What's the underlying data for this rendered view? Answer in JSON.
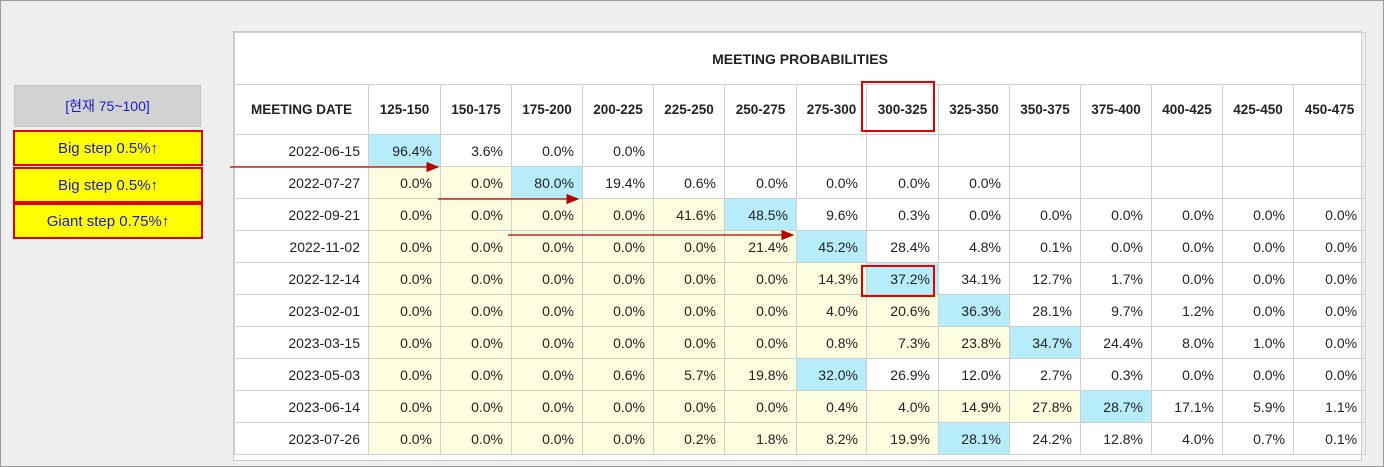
{
  "side_panel": {
    "current_label": "[현재 75~100]",
    "steps": [
      "Big step 0.5%↑",
      "Big step 0.5%↑",
      "Giant step 0.75%↑"
    ]
  },
  "table": {
    "title": "MEETING PROBABILITIES",
    "date_header": "MEETING DATE",
    "columns": [
      "125-150",
      "150-175",
      "175-200",
      "200-225",
      "225-250",
      "250-275",
      "275-300",
      "300-325",
      "325-350",
      "350-375",
      "375-400",
      "400-425",
      "425-450",
      "450-475"
    ],
    "rows": [
      {
        "date": "2022-06-15",
        "cells": [
          {
            "v": "96.4%",
            "s": "hl"
          },
          {
            "v": "3.6%",
            "s": ""
          },
          {
            "v": "0.0%",
            "s": ""
          },
          {
            "v": "0.0%",
            "s": ""
          },
          {
            "v": "",
            "s": ""
          },
          {
            "v": "",
            "s": ""
          },
          {
            "v": "",
            "s": ""
          },
          {
            "v": "",
            "s": ""
          },
          {
            "v": "",
            "s": ""
          },
          {
            "v": "",
            "s": ""
          },
          {
            "v": "",
            "s": ""
          },
          {
            "v": "",
            "s": ""
          },
          {
            "v": "",
            "s": ""
          },
          {
            "v": "",
            "s": ""
          }
        ]
      },
      {
        "date": "2022-07-27",
        "cells": [
          {
            "v": "0.0%",
            "s": "yel"
          },
          {
            "v": "0.0%",
            "s": "yel"
          },
          {
            "v": "80.0%",
            "s": "hl"
          },
          {
            "v": "19.4%",
            "s": ""
          },
          {
            "v": "0.6%",
            "s": ""
          },
          {
            "v": "0.0%",
            "s": ""
          },
          {
            "v": "0.0%",
            "s": ""
          },
          {
            "v": "0.0%",
            "s": ""
          },
          {
            "v": "0.0%",
            "s": ""
          },
          {
            "v": "",
            "s": ""
          },
          {
            "v": "",
            "s": ""
          },
          {
            "v": "",
            "s": ""
          },
          {
            "v": "",
            "s": ""
          },
          {
            "v": "",
            "s": ""
          }
        ]
      },
      {
        "date": "2022-09-21",
        "cells": [
          {
            "v": "0.0%",
            "s": "yel"
          },
          {
            "v": "0.0%",
            "s": "yel"
          },
          {
            "v": "0.0%",
            "s": "yel"
          },
          {
            "v": "0.0%",
            "s": "yel"
          },
          {
            "v": "41.6%",
            "s": "yel"
          },
          {
            "v": "48.5%",
            "s": "hl"
          },
          {
            "v": "9.6%",
            "s": ""
          },
          {
            "v": "0.3%",
            "s": ""
          },
          {
            "v": "0.0%",
            "s": ""
          },
          {
            "v": "0.0%",
            "s": ""
          },
          {
            "v": "0.0%",
            "s": ""
          },
          {
            "v": "0.0%",
            "s": ""
          },
          {
            "v": "0.0%",
            "s": ""
          },
          {
            "v": "0.0%",
            "s": ""
          }
        ]
      },
      {
        "date": "2022-11-02",
        "cells": [
          {
            "v": "0.0%",
            "s": "yel"
          },
          {
            "v": "0.0%",
            "s": "yel"
          },
          {
            "v": "0.0%",
            "s": "yel"
          },
          {
            "v": "0.0%",
            "s": "yel"
          },
          {
            "v": "0.0%",
            "s": "yel"
          },
          {
            "v": "21.4%",
            "s": "yel"
          },
          {
            "v": "45.2%",
            "s": "hl"
          },
          {
            "v": "28.4%",
            "s": ""
          },
          {
            "v": "4.8%",
            "s": ""
          },
          {
            "v": "0.1%",
            "s": ""
          },
          {
            "v": "0.0%",
            "s": ""
          },
          {
            "v": "0.0%",
            "s": ""
          },
          {
            "v": "0.0%",
            "s": ""
          },
          {
            "v": "0.0%",
            "s": ""
          }
        ]
      },
      {
        "date": "2022-12-14",
        "cells": [
          {
            "v": "0.0%",
            "s": "yel"
          },
          {
            "v": "0.0%",
            "s": "yel"
          },
          {
            "v": "0.0%",
            "s": "yel"
          },
          {
            "v": "0.0%",
            "s": "yel"
          },
          {
            "v": "0.0%",
            "s": "yel"
          },
          {
            "v": "0.0%",
            "s": "yel"
          },
          {
            "v": "14.3%",
            "s": "yel"
          },
          {
            "v": "37.2%",
            "s": "hl"
          },
          {
            "v": "34.1%",
            "s": ""
          },
          {
            "v": "12.7%",
            "s": ""
          },
          {
            "v": "1.7%",
            "s": ""
          },
          {
            "v": "0.0%",
            "s": ""
          },
          {
            "v": "0.0%",
            "s": ""
          },
          {
            "v": "0.0%",
            "s": ""
          }
        ]
      },
      {
        "date": "2023-02-01",
        "cells": [
          {
            "v": "0.0%",
            "s": "yel"
          },
          {
            "v": "0.0%",
            "s": "yel"
          },
          {
            "v": "0.0%",
            "s": "yel"
          },
          {
            "v": "0.0%",
            "s": "yel"
          },
          {
            "v": "0.0%",
            "s": "yel"
          },
          {
            "v": "0.0%",
            "s": "yel"
          },
          {
            "v": "4.0%",
            "s": "yel"
          },
          {
            "v": "20.6%",
            "s": "yel"
          },
          {
            "v": "36.3%",
            "s": "hl"
          },
          {
            "v": "28.1%",
            "s": ""
          },
          {
            "v": "9.7%",
            "s": ""
          },
          {
            "v": "1.2%",
            "s": ""
          },
          {
            "v": "0.0%",
            "s": ""
          },
          {
            "v": "0.0%",
            "s": ""
          }
        ]
      },
      {
        "date": "2023-03-15",
        "cells": [
          {
            "v": "0.0%",
            "s": "yel"
          },
          {
            "v": "0.0%",
            "s": "yel"
          },
          {
            "v": "0.0%",
            "s": "yel"
          },
          {
            "v": "0.0%",
            "s": "yel"
          },
          {
            "v": "0.0%",
            "s": "yel"
          },
          {
            "v": "0.0%",
            "s": "yel"
          },
          {
            "v": "0.8%",
            "s": "yel"
          },
          {
            "v": "7.3%",
            "s": "yel"
          },
          {
            "v": "23.8%",
            "s": "yel"
          },
          {
            "v": "34.7%",
            "s": "hl"
          },
          {
            "v": "24.4%",
            "s": ""
          },
          {
            "v": "8.0%",
            "s": ""
          },
          {
            "v": "1.0%",
            "s": ""
          },
          {
            "v": "0.0%",
            "s": ""
          }
        ]
      },
      {
        "date": "2023-05-03",
        "cells": [
          {
            "v": "0.0%",
            "s": "yel"
          },
          {
            "v": "0.0%",
            "s": "yel"
          },
          {
            "v": "0.0%",
            "s": "yel"
          },
          {
            "v": "0.6%",
            "s": "yel"
          },
          {
            "v": "5.7%",
            "s": "yel"
          },
          {
            "v": "19.8%",
            "s": "yel"
          },
          {
            "v": "32.0%",
            "s": "hl"
          },
          {
            "v": "26.9%",
            "s": ""
          },
          {
            "v": "12.0%",
            "s": ""
          },
          {
            "v": "2.7%",
            "s": ""
          },
          {
            "v": "0.3%",
            "s": ""
          },
          {
            "v": "0.0%",
            "s": ""
          },
          {
            "v": "0.0%",
            "s": ""
          },
          {
            "v": "0.0%",
            "s": ""
          }
        ]
      },
      {
        "date": "2023-06-14",
        "cells": [
          {
            "v": "0.0%",
            "s": "yel"
          },
          {
            "v": "0.0%",
            "s": "yel"
          },
          {
            "v": "0.0%",
            "s": "yel"
          },
          {
            "v": "0.0%",
            "s": "yel"
          },
          {
            "v": "0.0%",
            "s": "yel"
          },
          {
            "v": "0.0%",
            "s": "yel"
          },
          {
            "v": "0.4%",
            "s": "yel"
          },
          {
            "v": "4.0%",
            "s": "yel"
          },
          {
            "v": "14.9%",
            "s": "yel"
          },
          {
            "v": "27.8%",
            "s": "yel"
          },
          {
            "v": "28.7%",
            "s": "hl"
          },
          {
            "v": "17.1%",
            "s": ""
          },
          {
            "v": "5.9%",
            "s": ""
          },
          {
            "v": "1.1%",
            "s": ""
          }
        ]
      },
      {
        "date": "2023-07-26",
        "cells": [
          {
            "v": "0.0%",
            "s": "yel"
          },
          {
            "v": "0.0%",
            "s": "yel"
          },
          {
            "v": "0.0%",
            "s": "yel"
          },
          {
            "v": "0.0%",
            "s": "yel"
          },
          {
            "v": "0.2%",
            "s": "yel"
          },
          {
            "v": "1.8%",
            "s": "yel"
          },
          {
            "v": "8.2%",
            "s": "yel"
          },
          {
            "v": "19.9%",
            "s": "yel"
          },
          {
            "v": "28.1%",
            "s": "hl"
          },
          {
            "v": "24.2%",
            "s": ""
          },
          {
            "v": "12.8%",
            "s": ""
          },
          {
            "v": "4.0%",
            "s": ""
          },
          {
            "v": "0.7%",
            "s": ""
          },
          {
            "v": "0.1%",
            "s": ""
          }
        ]
      }
    ]
  },
  "colors": {
    "highlight": "#b7edfb",
    "shade": "#fdfde0",
    "annotation_red": "#e30000",
    "step_yellow": "#ffff00",
    "text_blue": "#1a1acc"
  }
}
